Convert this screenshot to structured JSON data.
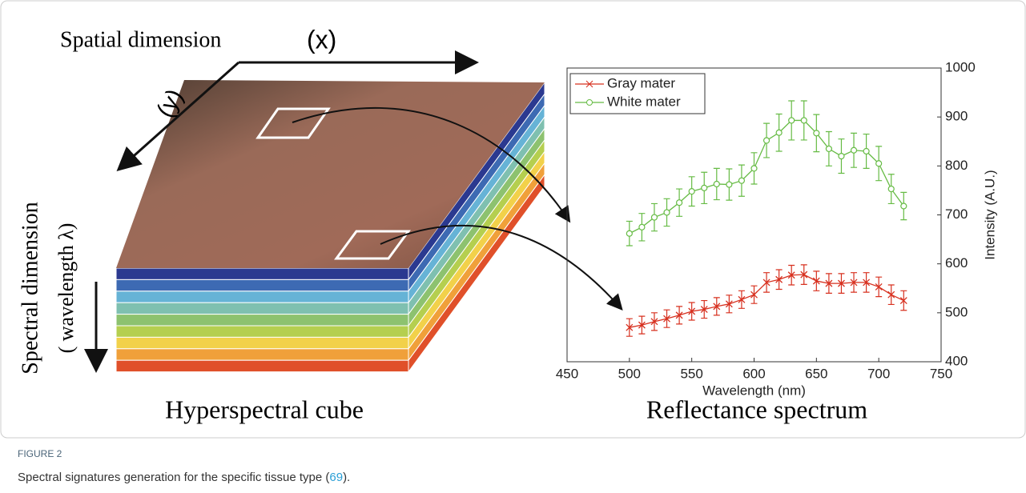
{
  "figure": {
    "spatial_label": "Spatial dimension",
    "x_label": "(x)",
    "y_label": "(y)",
    "spectral_label": "Spectral dimension",
    "wavelength_label": "( wavelength λ)",
    "cube_caption": "Hyperspectral cube",
    "spectrum_caption": "Reflectance spectrum"
  },
  "caption": {
    "label": "FIGURE 2",
    "text": "Spectral signatures generation for the specific tissue type (",
    "ref": "69",
    "end": ")."
  },
  "chart_data": {
    "type": "line",
    "x_label": "Wavelength (nm)",
    "y_label": "Intensity (A.U.)",
    "x": [
      500,
      510,
      520,
      530,
      540,
      550,
      560,
      570,
      580,
      590,
      600,
      610,
      620,
      630,
      640,
      650,
      660,
      670,
      680,
      690,
      700,
      710,
      720
    ],
    "series": [
      {
        "name": "Gray mater",
        "color": "#d7301f",
        "marker": "x",
        "values": [
          470,
          475,
          482,
          488,
          495,
          503,
          507,
          513,
          518,
          527,
          537,
          562,
          568,
          577,
          578,
          565,
          560,
          560,
          562,
          562,
          553,
          537,
          525
        ],
        "errors": [
          18,
          18,
          18,
          18,
          18,
          18,
          18,
          18,
          18,
          18,
          18,
          20,
          20,
          20,
          20,
          20,
          20,
          20,
          20,
          20,
          20,
          20,
          20
        ]
      },
      {
        "name": "White mater",
        "color": "#66bb44",
        "marker": "o",
        "values": [
          662,
          675,
          695,
          705,
          725,
          748,
          755,
          763,
          762,
          770,
          795,
          852,
          868,
          893,
          893,
          867,
          835,
          820,
          832,
          830,
          805,
          753,
          718
        ],
        "errors": [
          25,
          28,
          28,
          28,
          28,
          30,
          32,
          32,
          32,
          32,
          32,
          35,
          38,
          40,
          40,
          38,
          35,
          35,
          35,
          35,
          35,
          30,
          28
        ]
      }
    ],
    "xlim": [
      450,
      750
    ],
    "ylim": [
      400,
      1000
    ],
    "xticks": [
      450,
      500,
      550,
      600,
      650,
      700,
      750
    ],
    "yticks": [
      400,
      500,
      600,
      700,
      800,
      900,
      1000
    ],
    "y_axis_side": "right",
    "legend": "upper-left"
  }
}
